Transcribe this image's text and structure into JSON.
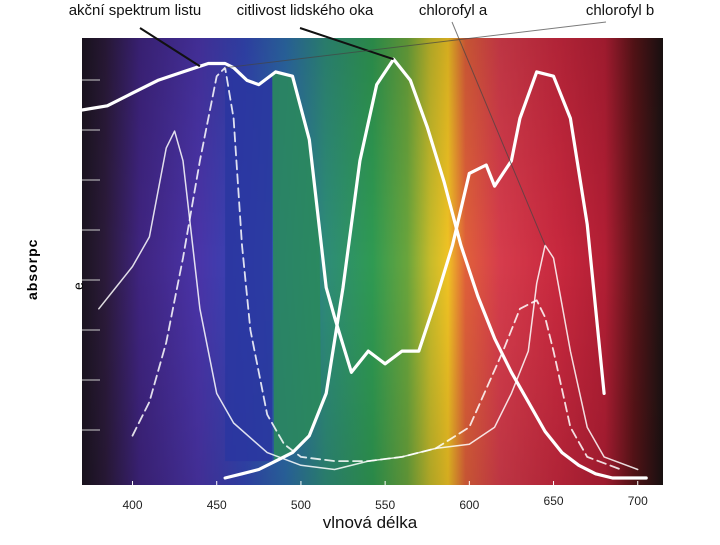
{
  "chart_data": {
    "type": "line",
    "background": "visible light spectrum 380–720 nm",
    "xlabel": "vlnová délka",
    "ylabel": "absorpce",
    "ylabel_line1": "absorpc",
    "ylabel_line2": "e",
    "x_ticks": [
      "400",
      "450",
      "500",
      "550",
      "600",
      "650",
      "700"
    ],
    "x_tick_values": [
      400,
      450,
      500,
      550,
      600,
      650,
      700
    ],
    "xlim": [
      370,
      715
    ],
    "ylim": [
      0,
      1
    ],
    "labels": {
      "action": "akční spektrum listu",
      "eye": "citlivost lidského oka",
      "chla": "chlorofyl a",
      "chlb": "chlorofyl b"
    },
    "series": [
      {
        "key": "action",
        "style": "solid-white-thick",
        "x": [
          370,
          385,
          400,
          415,
          430,
          445,
          455,
          460,
          468,
          475,
          485,
          495,
          505,
          515,
          520,
          530,
          540,
          550,
          560,
          570,
          580,
          590,
          600,
          610,
          615,
          620,
          625,
          630,
          640,
          650,
          660,
          670,
          680
        ],
        "y": [
          0.87,
          0.88,
          0.91,
          0.94,
          0.96,
          0.98,
          0.98,
          0.97,
          0.94,
          0.93,
          0.96,
          0.95,
          0.8,
          0.45,
          0.38,
          0.25,
          0.3,
          0.27,
          0.3,
          0.3,
          0.42,
          0.55,
          0.72,
          0.74,
          0.69,
          0.72,
          0.75,
          0.85,
          0.96,
          0.95,
          0.85,
          0.6,
          0.2
        ]
      },
      {
        "key": "eye",
        "style": "solid-white-thick",
        "x": [
          455,
          465,
          475,
          485,
          495,
          505,
          515,
          525,
          535,
          545,
          555,
          565,
          575,
          585,
          595,
          605,
          615,
          625,
          635,
          645,
          655,
          665,
          675,
          685,
          695,
          705
        ],
        "y": [
          0.0,
          0.01,
          0.02,
          0.04,
          0.06,
          0.1,
          0.2,
          0.45,
          0.75,
          0.93,
          0.99,
          0.94,
          0.83,
          0.7,
          0.55,
          0.43,
          0.33,
          0.25,
          0.18,
          0.11,
          0.06,
          0.03,
          0.01,
          0.0,
          0.0,
          0.0
        ]
      },
      {
        "key": "chla",
        "style": "thin-white",
        "x": [
          380,
          390,
          400,
          410,
          420,
          425,
          430,
          440,
          450,
          460,
          480,
          500,
          520,
          540,
          560,
          580,
          600,
          615,
          625,
          635,
          640,
          645,
          650,
          660,
          670,
          680,
          700
        ],
        "y": [
          0.4,
          0.45,
          0.5,
          0.57,
          0.78,
          0.82,
          0.75,
          0.4,
          0.2,
          0.13,
          0.06,
          0.03,
          0.02,
          0.04,
          0.05,
          0.07,
          0.08,
          0.12,
          0.2,
          0.3,
          0.46,
          0.55,
          0.52,
          0.3,
          0.12,
          0.05,
          0.02
        ]
      },
      {
        "key": "chlb",
        "style": "dashed-white",
        "x": [
          400,
          410,
          420,
          430,
          440,
          450,
          455,
          460,
          465,
          470,
          480,
          490,
          500,
          520,
          540,
          560,
          580,
          600,
          620,
          630,
          640,
          645,
          650,
          660,
          670,
          690
        ],
        "y": [
          0.1,
          0.18,
          0.32,
          0.52,
          0.75,
          0.95,
          0.97,
          0.85,
          0.55,
          0.35,
          0.15,
          0.08,
          0.05,
          0.04,
          0.04,
          0.05,
          0.07,
          0.12,
          0.3,
          0.4,
          0.42,
          0.38,
          0.3,
          0.12,
          0.05,
          0.02
        ]
      }
    ]
  }
}
